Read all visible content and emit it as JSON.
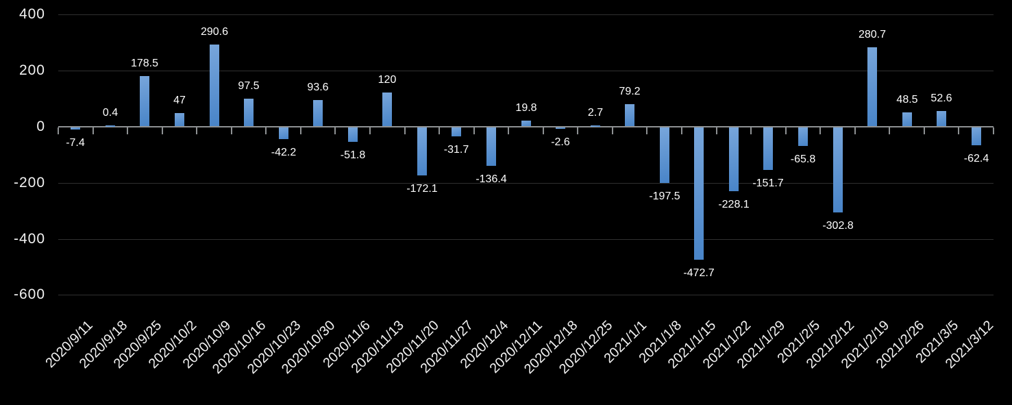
{
  "chart_data": {
    "type": "bar",
    "title": "",
    "xlabel": "",
    "ylabel": "",
    "categories": [
      "2020/9/11",
      "2020/9/18",
      "2020/9/25",
      "2020/10/2",
      "2020/10/9",
      "2020/10/16",
      "2020/10/23",
      "2020/10/30",
      "2020/11/6",
      "2020/11/13",
      "2020/11/20",
      "2020/11/27",
      "2020/12/4",
      "2020/12/11",
      "2020/12/18",
      "2020/12/25",
      "2021/1/1",
      "2021/1/8",
      "2021/1/15",
      "2021/1/22",
      "2021/1/29",
      "2021/2/5",
      "2021/2/12",
      "2021/2/19",
      "2021/2/26",
      "2021/3/5",
      "2021/3/12"
    ],
    "values": [
      -7.4,
      0.4,
      178.5,
      47,
      290.6,
      97.5,
      -42.2,
      93.6,
      -51.8,
      120,
      -172.1,
      -31.7,
      -136.4,
      19.8,
      -2.6,
      2.7,
      79.2,
      -197.5,
      -472.7,
      -228.1,
      -151.7,
      -65.8,
      -302.8,
      280.7,
      48.5,
      52.6,
      -62.4
    ],
    "data_labels": [
      "-7.4",
      "0.4",
      "178.5",
      "47",
      "290.6",
      "97.5",
      "-42.2",
      "93.6",
      "-51.8",
      "120",
      "-172.1",
      "-31.7",
      "-136.4",
      "19.8",
      "-2.6",
      "2.7",
      "79.2",
      "-197.5",
      "-472.7",
      "-228.1",
      "-151.7",
      "-65.8",
      "-302.8",
      "280.7",
      "48.5",
      "52.6",
      "-62.4"
    ],
    "y_tick_labels": [
      "400",
      "200",
      "0",
      "-200",
      "-400",
      "-600"
    ],
    "y_tick_values": [
      400,
      200,
      0,
      -200,
      -400,
      -600
    ],
    "ylim": [
      -600,
      400
    ],
    "grid": "horizontal",
    "legend": "none",
    "colors": {
      "background": "#000000",
      "bar_gradient_top": "#78A6DB",
      "bar_gradient_bottom": "#4884C8",
      "axis_line": "#8E9193",
      "gridline": "#303030",
      "label_text": "#FFFFFF",
      "axis_text": "#F2F2F2"
    }
  }
}
